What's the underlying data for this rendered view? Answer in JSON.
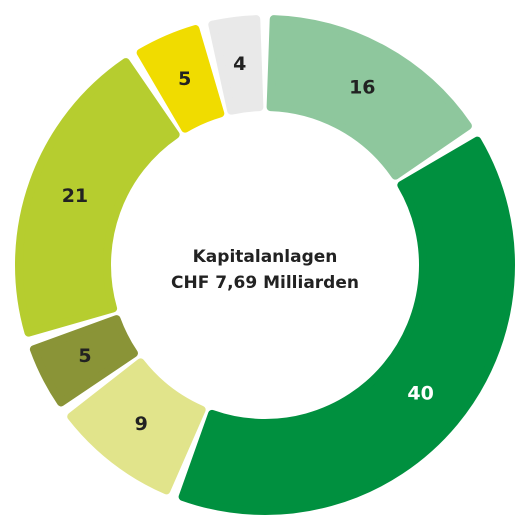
{
  "chart_data": {
    "type": "donut",
    "title": "Kapitalanlagen",
    "subtitle": "CHF 7,69 Milliarden",
    "values": [
      16,
      40,
      9,
      5,
      21,
      5,
      4
    ],
    "colors": [
      "#8ec79d",
      "#00903f",
      "#e1e48b",
      "#8a9437",
      "#b6cd2f",
      "#f0dc00",
      "#e9e9e9"
    ]
  }
}
